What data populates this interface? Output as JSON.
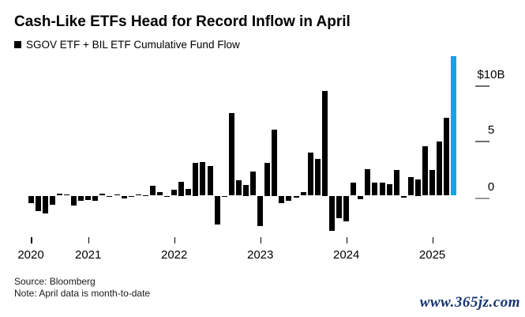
{
  "header": {
    "title": "Cash-Like ETFs Head for Record Inflow in April",
    "legend_label": "SGOV ETF + BIL ETF Cumulative Fund Flow"
  },
  "footer": {
    "source": "Source: Bloomberg",
    "note": "Note: April data is month-to-date",
    "watermark": "www.365jz.com"
  },
  "chart_data": {
    "type": "bar",
    "title": "Cash-Like ETFs Head for Record Inflow in April",
    "legend": [
      "SGOV ETF + BIL ETF Cumulative Fund Flow"
    ],
    "unit": "USD billions, monthly fund flow",
    "x": [
      "2020-05",
      "2020-06",
      "2020-07",
      "2020-08",
      "2020-09",
      "2020-10",
      "2020-11",
      "2020-12",
      "2021-01",
      "2021-02",
      "2021-03",
      "2021-04",
      "2021-05",
      "2021-06",
      "2021-07",
      "2021-08",
      "2021-09",
      "2021-10",
      "2021-11",
      "2021-12",
      "2022-01",
      "2022-02",
      "2022-03",
      "2022-04",
      "2022-05",
      "2022-06",
      "2022-07",
      "2022-08",
      "2022-09",
      "2022-10",
      "2022-11",
      "2022-12",
      "2023-01",
      "2023-02",
      "2023-03",
      "2023-04",
      "2023-05",
      "2023-06",
      "2023-07",
      "2023-08",
      "2023-09",
      "2023-10",
      "2023-11",
      "2023-12",
      "2024-01",
      "2024-02",
      "2024-03",
      "2024-04",
      "2024-05",
      "2024-06",
      "2024-07",
      "2024-08",
      "2024-09",
      "2024-10",
      "2024-11",
      "2024-12",
      "2025-01",
      "2025-02",
      "2025-03",
      "2025-04"
    ],
    "values": [
      -0.7,
      -1.4,
      -1.6,
      -0.8,
      0.15,
      0.1,
      -0.9,
      -0.45,
      -0.4,
      -0.45,
      0.15,
      -0.1,
      0.1,
      -0.25,
      -0.05,
      0.1,
      0.05,
      0.9,
      0.3,
      -0.1,
      0.55,
      1.25,
      0.6,
      3.0,
      3.05,
      2.7,
      -2.6,
      -0.05,
      7.45,
      1.4,
      1.0,
      2.15,
      -2.75,
      3.0,
      6.0,
      -0.7,
      -0.45,
      -0.2,
      0.3,
      3.9,
      3.3,
      9.5,
      -3.2,
      -2.0,
      -2.35,
      1.2,
      -0.35,
      2.4,
      1.15,
      1.15,
      1.05,
      2.35,
      -0.2,
      1.65,
      1.5,
      4.45,
      2.35,
      4.9,
      7.05,
      12.6
    ],
    "highlight": {
      "index": 59,
      "label": "April 2025 (month-to-date)"
    },
    "y_axis": {
      "ticks": [
        10,
        5,
        0
      ],
      "tick_labels": [
        "$10B",
        "5",
        "0"
      ],
      "side": "right",
      "ylim": [
        -4,
        13
      ]
    },
    "x_axis": {
      "year_labels": [
        "2020",
        "2021",
        "2022",
        "2023",
        "2024",
        "2025"
      ]
    },
    "colors": {
      "bar": "#000000",
      "highlight": "#0da6e8"
    },
    "grid": false,
    "legend_position": "top-left"
  }
}
